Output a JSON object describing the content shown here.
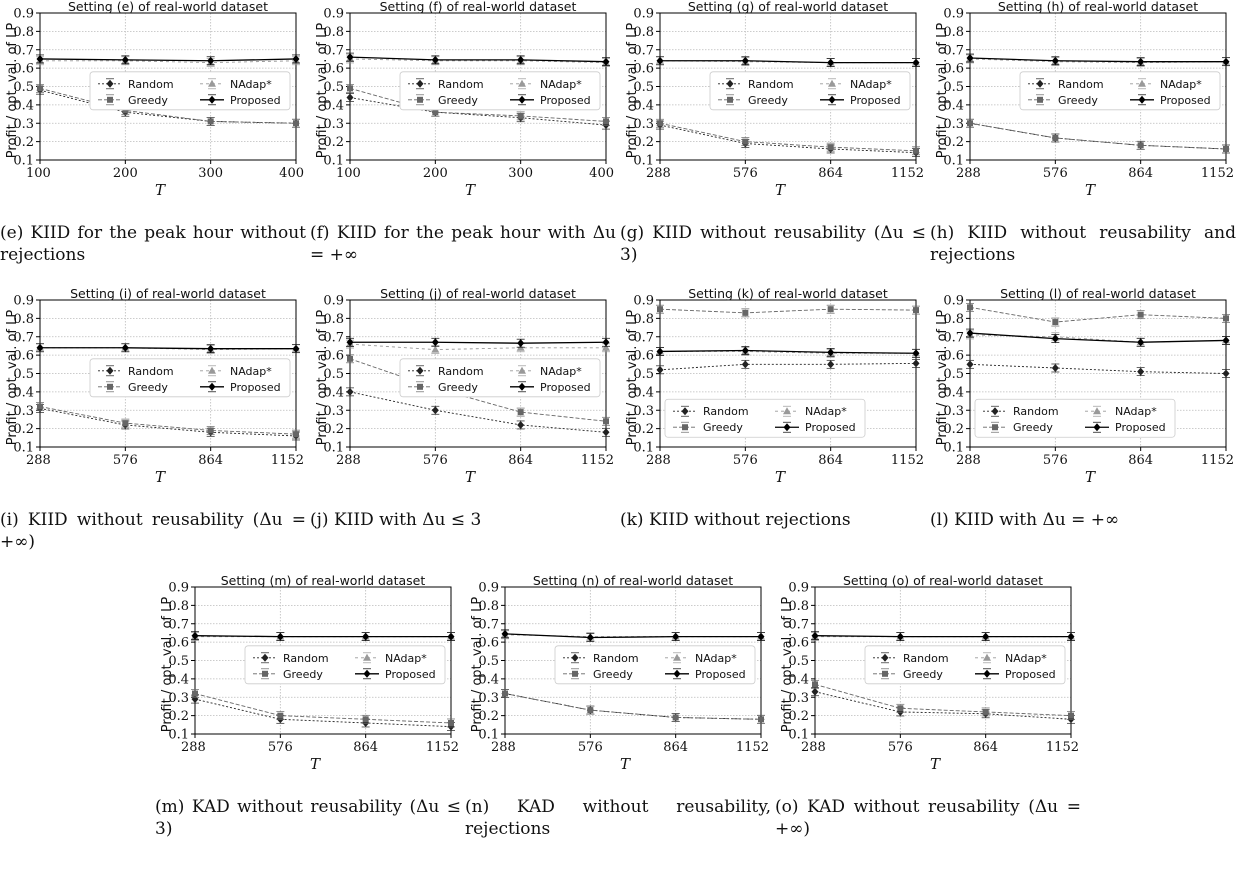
{
  "legend_labels": [
    "Random",
    "NAdap*",
    "Greedy",
    "Proposed"
  ],
  "series_names": [
    "Random",
    "Greedy",
    "NAdap*",
    "Proposed"
  ],
  "series_colors": [
    "#222222",
    "#666666",
    "#999999",
    "#000000"
  ],
  "ylabel": "Profit / opt. val. of LP",
  "xlabel": "T",
  "chart_data": [
    {
      "type": "line",
      "title": "Setting (e) of real-world dataset",
      "caption": "(e) KIID for the peak hour without rejections",
      "x": [
        100,
        200,
        300,
        400
      ],
      "xlim": [
        100,
        400
      ],
      "ylim": [
        0.1,
        0.9
      ],
      "yticks": [
        "0.1",
        "0.2",
        "0.3",
        "0.4",
        "0.5",
        "0.6",
        "0.7",
        "0.8",
        "0.9"
      ],
      "legend": "center-right",
      "series": [
        {
          "name": "Random",
          "values": [
            0.48,
            0.36,
            0.31,
            0.3
          ]
        },
        {
          "name": "Greedy",
          "values": [
            0.49,
            0.37,
            0.31,
            0.3
          ]
        },
        {
          "name": "NAdap*",
          "values": [
            0.64,
            0.64,
            0.63,
            0.64
          ]
        },
        {
          "name": "Proposed",
          "values": [
            0.65,
            0.645,
            0.64,
            0.65
          ]
        }
      ]
    },
    {
      "type": "line",
      "title": "Setting (f) of real-world dataset",
      "caption": "(f) KIID for the peak hour with Δu = +∞",
      "x": [
        100,
        200,
        300,
        400
      ],
      "xlim": [
        100,
        400
      ],
      "ylim": [
        0.1,
        0.9
      ],
      "yticks": [
        "0.1",
        "0.2",
        "0.3",
        "0.4",
        "0.5",
        "0.6",
        "0.7",
        "0.8",
        "0.9"
      ],
      "legend": "center-right",
      "series": [
        {
          "name": "Random",
          "values": [
            0.44,
            0.36,
            0.33,
            0.29
          ]
        },
        {
          "name": "Greedy",
          "values": [
            0.49,
            0.36,
            0.34,
            0.31
          ]
        },
        {
          "name": "NAdap*",
          "values": [
            0.65,
            0.64,
            0.64,
            0.63
          ]
        },
        {
          "name": "Proposed",
          "values": [
            0.66,
            0.645,
            0.645,
            0.635
          ]
        }
      ]
    },
    {
      "type": "line",
      "title": "Setting (g) of real-world dataset",
      "caption": "(g) KIID without reusability (Δu ≤ 3)",
      "x": [
        288,
        576,
        864,
        1152
      ],
      "xlim": [
        288,
        1152
      ],
      "ylim": [
        0.1,
        0.9
      ],
      "yticks": [
        "0.1",
        "0.2",
        "0.3",
        "0.4",
        "0.5",
        "0.6",
        "0.7",
        "0.8",
        "0.9"
      ],
      "legend": "center-right",
      "series": [
        {
          "name": "Random",
          "values": [
            0.29,
            0.19,
            0.16,
            0.14
          ]
        },
        {
          "name": "Greedy",
          "values": [
            0.3,
            0.2,
            0.17,
            0.15
          ]
        },
        {
          "name": "NAdap*",
          "values": [
            0.64,
            0.635,
            0.63,
            0.63
          ]
        },
        {
          "name": "Proposed",
          "values": [
            0.64,
            0.64,
            0.63,
            0.63
          ]
        }
      ]
    },
    {
      "type": "line",
      "title": "Setting (h) of real-world dataset",
      "caption": "(h) KIID without reusability and rejections",
      "x": [
        288,
        576,
        864,
        1152
      ],
      "xlim": [
        288,
        1152
      ],
      "ylim": [
        0.1,
        0.9
      ],
      "yticks": [
        "0.1",
        "0.2",
        "0.3",
        "0.4",
        "0.5",
        "0.6",
        "0.7",
        "0.8",
        "0.9"
      ],
      "legend": "center-right",
      "series": [
        {
          "name": "Random",
          "values": [
            0.3,
            0.22,
            0.18,
            0.16
          ]
        },
        {
          "name": "Greedy",
          "values": [
            0.3,
            0.22,
            0.18,
            0.16
          ]
        },
        {
          "name": "NAdap*",
          "values": [
            0.65,
            0.635,
            0.63,
            0.635
          ]
        },
        {
          "name": "Proposed",
          "values": [
            0.655,
            0.64,
            0.635,
            0.635
          ]
        }
      ]
    },
    {
      "type": "line",
      "title": "Setting (i) of real-world dataset",
      "caption": "(i) KIID without reusability (Δu = +∞)",
      "x": [
        288,
        576,
        864,
        1152
      ],
      "xlim": [
        288,
        1152
      ],
      "ylim": [
        0.1,
        0.9
      ],
      "yticks": [
        "0.1",
        "0.2",
        "0.3",
        "0.4",
        "0.5",
        "0.6",
        "0.7",
        "0.8",
        "0.9"
      ],
      "legend": "center-right",
      "series": [
        {
          "name": "Random",
          "values": [
            0.31,
            0.22,
            0.18,
            0.16
          ]
        },
        {
          "name": "Greedy",
          "values": [
            0.32,
            0.23,
            0.19,
            0.17
          ]
        },
        {
          "name": "NAdap*",
          "values": [
            0.64,
            0.64,
            0.63,
            0.635
          ]
        },
        {
          "name": "Proposed",
          "values": [
            0.64,
            0.64,
            0.635,
            0.635
          ]
        }
      ]
    },
    {
      "type": "line",
      "title": "Setting (j) of real-world dataset",
      "caption": "(j) KIID with Δu ≤ 3",
      "x": [
        288,
        576,
        864,
        1152
      ],
      "xlim": [
        288,
        1152
      ],
      "ylim": [
        0.1,
        0.9
      ],
      "yticks": [
        "0.1",
        "0.2",
        "0.3",
        "0.4",
        "0.5",
        "0.6",
        "0.7",
        "0.8",
        "0.9"
      ],
      "legend": "center-right",
      "series": [
        {
          "name": "Random",
          "values": [
            0.4,
            0.3,
            0.22,
            0.18
          ]
        },
        {
          "name": "Greedy",
          "values": [
            0.58,
            0.42,
            0.29,
            0.24
          ]
        },
        {
          "name": "NAdap*",
          "values": [
            0.66,
            0.63,
            0.64,
            0.64
          ]
        },
        {
          "name": "Proposed",
          "values": [
            0.67,
            0.67,
            0.665,
            0.67
          ]
        }
      ]
    },
    {
      "type": "line",
      "title": "Setting (k) of real-world dataset",
      "caption": "(k) KIID without rejections",
      "x": [
        288,
        576,
        864,
        1152
      ],
      "xlim": [
        288,
        1152
      ],
      "ylim": [
        0.1,
        0.9
      ],
      "yticks": [
        "0.1",
        "0.2",
        "0.3",
        "0.4",
        "0.5",
        "0.6",
        "0.7",
        "0.8",
        "0.9"
      ],
      "legend": "lower-left",
      "series": [
        {
          "name": "Random",
          "values": [
            0.52,
            0.55,
            0.55,
            0.555
          ]
        },
        {
          "name": "Greedy",
          "values": [
            0.85,
            0.83,
            0.85,
            0.845
          ]
        },
        {
          "name": "NAdap*",
          "values": [
            0.62,
            0.62,
            0.61,
            0.61
          ]
        },
        {
          "name": "Proposed",
          "values": [
            0.62,
            0.625,
            0.615,
            0.61
          ]
        }
      ]
    },
    {
      "type": "line",
      "title": "Setting (l) of real-world dataset",
      "caption": "(l) KIID with Δu = +∞",
      "x": [
        288,
        576,
        864,
        1152
      ],
      "xlim": [
        288,
        1152
      ],
      "ylim": [
        0.1,
        0.9
      ],
      "yticks": [
        "0.1",
        "0.2",
        "0.3",
        "0.4",
        "0.5",
        "0.6",
        "0.7",
        "0.8",
        "0.9"
      ],
      "legend": "lower-left",
      "series": [
        {
          "name": "Random",
          "values": [
            0.55,
            0.53,
            0.51,
            0.5
          ]
        },
        {
          "name": "Greedy",
          "values": [
            0.86,
            0.78,
            0.82,
            0.8
          ]
        },
        {
          "name": "NAdap*",
          "values": [
            0.71,
            0.7,
            0.67,
            0.68
          ]
        },
        {
          "name": "Proposed",
          "values": [
            0.72,
            0.69,
            0.67,
            0.68
          ]
        }
      ]
    },
    {
      "type": "line",
      "title": "Setting (m) of real-world dataset",
      "caption": "(m) KAD without reusability (Δu ≤ 3)",
      "x": [
        288,
        576,
        864,
        1152
      ],
      "xlim": [
        288,
        1152
      ],
      "ylim": [
        0.1,
        0.9
      ],
      "yticks": [
        "0.1",
        "0.2",
        "0.3",
        "0.4",
        "0.5",
        "0.6",
        "0.7",
        "0.8",
        "0.9"
      ],
      "legend": "center-right",
      "series": [
        {
          "name": "Random",
          "values": [
            0.29,
            0.18,
            0.16,
            0.14
          ]
        },
        {
          "name": "Greedy",
          "values": [
            0.32,
            0.2,
            0.18,
            0.16
          ]
        },
        {
          "name": "NAdap*",
          "values": [
            0.63,
            0.63,
            0.63,
            0.63
          ]
        },
        {
          "name": "Proposed",
          "values": [
            0.635,
            0.63,
            0.63,
            0.63
          ]
        }
      ]
    },
    {
      "type": "line",
      "title": "Setting (n) of real-world dataset",
      "caption": "(n) KAD without reusability, rejections",
      "x": [
        288,
        576,
        864,
        1152
      ],
      "xlim": [
        288,
        1152
      ],
      "ylim": [
        0.1,
        0.9
      ],
      "yticks": [
        "0.1",
        "0.2",
        "0.3",
        "0.4",
        "0.5",
        "0.6",
        "0.7",
        "0.8",
        "0.9"
      ],
      "legend": "center-right",
      "series": [
        {
          "name": "Random",
          "values": [
            0.32,
            0.23,
            0.19,
            0.18
          ]
        },
        {
          "name": "Greedy",
          "values": [
            0.32,
            0.23,
            0.19,
            0.18
          ]
        },
        {
          "name": "NAdap*",
          "values": [
            0.64,
            0.63,
            0.63,
            0.63
          ]
        },
        {
          "name": "Proposed",
          "values": [
            0.645,
            0.625,
            0.63,
            0.63
          ]
        }
      ]
    },
    {
      "type": "line",
      "title": "Setting (o) of real-world dataset",
      "caption": "(o) KAD without reusability (Δu = +∞)",
      "x": [
        288,
        576,
        864,
        1152
      ],
      "xlim": [
        288,
        1152
      ],
      "ylim": [
        0.1,
        0.9
      ],
      "yticks": [
        "0.1",
        "0.2",
        "0.3",
        "0.4",
        "0.5",
        "0.6",
        "0.7",
        "0.8",
        "0.9"
      ],
      "legend": "center-right",
      "series": [
        {
          "name": "Random",
          "values": [
            0.33,
            0.22,
            0.21,
            0.18
          ]
        },
        {
          "name": "Greedy",
          "values": [
            0.37,
            0.24,
            0.22,
            0.2
          ]
        },
        {
          "name": "NAdap*",
          "values": [
            0.63,
            0.63,
            0.63,
            0.63
          ]
        },
        {
          "name": "Proposed",
          "values": [
            0.635,
            0.63,
            0.63,
            0.63
          ]
        }
      ]
    }
  ]
}
